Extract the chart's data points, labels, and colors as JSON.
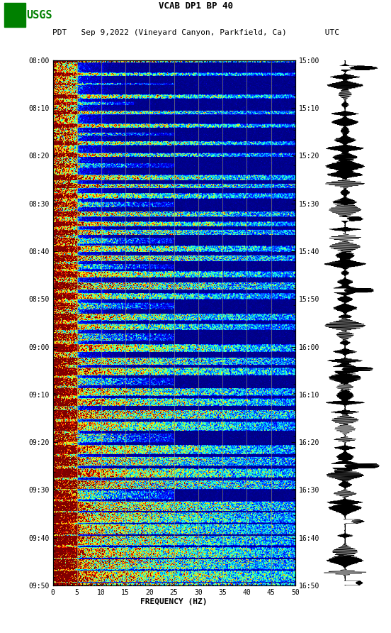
{
  "title_line1": "VCAB DP1 BP 40",
  "title_line2": "PDT   Sep 9,2022 (Vineyard Canyon, Parkfield, Ca)        UTC",
  "xlabel": "FREQUENCY (HZ)",
  "freq_min": 0,
  "freq_max": 50,
  "pdt_ticks": [
    "08:00",
    "08:10",
    "08:20",
    "08:30",
    "08:40",
    "08:50",
    "09:00",
    "09:10",
    "09:20",
    "09:30",
    "09:40",
    "09:50"
  ],
  "utc_ticks": [
    "15:00",
    "15:10",
    "15:20",
    "15:30",
    "15:40",
    "15:50",
    "16:00",
    "16:10",
    "16:20",
    "16:30",
    "16:40",
    "16:50"
  ],
  "freq_ticks": [
    0,
    5,
    10,
    15,
    20,
    25,
    30,
    35,
    40,
    45,
    50
  ],
  "background_color": "#ffffff",
  "spectrogram_cmap": "jet",
  "usgs_green": "#008000",
  "n_freq": 400,
  "n_time": 720,
  "grid_color": "#999966",
  "grid_alpha": 0.7
}
